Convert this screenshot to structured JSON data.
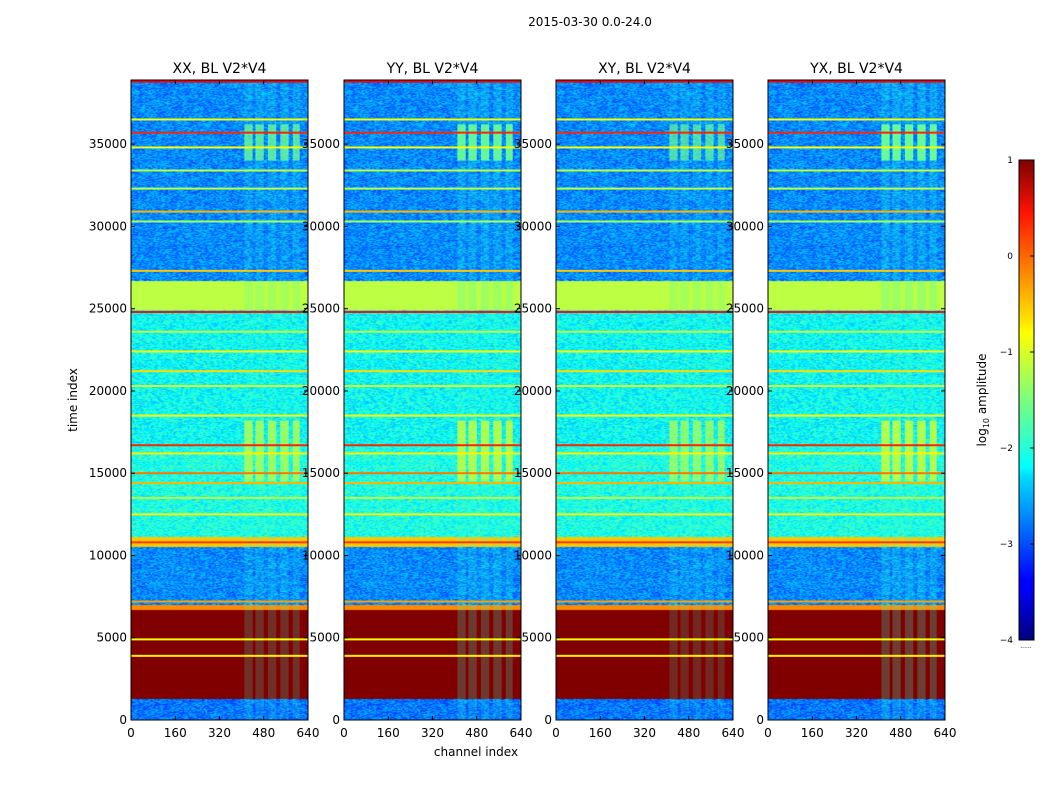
{
  "figure": {
    "suptitle": "2015-03-30 0.0-24.0",
    "xlabel": "channel index",
    "ylabel": "time index"
  },
  "colorbar": {
    "label_prefix": "log",
    "label_sub": "10",
    "label_suffix": " amplitude",
    "ticks": [
      1,
      0,
      -1,
      -2,
      -3,
      -4
    ],
    "tick_labels": [
      "1",
      "0",
      "−1",
      "−2",
      "−3",
      "−4"
    ],
    "range": [
      -4,
      1
    ],
    "colormap": "jet",
    "extra_text": "......"
  },
  "chart_data": {
    "type": "heatmap",
    "title": "2015-03-30 0.0-24.0",
    "xlabel": "channel index",
    "ylabel": "time index",
    "xlim": [
      0,
      640
    ],
    "ylim": [
      0,
      38900
    ],
    "xticks": [
      0,
      160,
      320,
      480,
      640
    ],
    "xtick_labels": [
      "0",
      "160",
      "320",
      "480",
      "640"
    ],
    "yticks": [
      0,
      5000,
      10000,
      15000,
      20000,
      25000,
      30000,
      35000
    ],
    "ytick_labels": [
      "0",
      "5000",
      "10000",
      "15000",
      "20000",
      "25000",
      "30000",
      "35000"
    ],
    "value_label": "log10 amplitude",
    "value_range": [
      -4,
      1
    ],
    "panels": [
      {
        "title": "XX, BL V2*V4",
        "ytick_labels": [
          "0",
          "5000",
          "10000",
          "15000",
          "20000",
          "25000",
          "30000",
          "35000"
        ],
        "rfi_strength": 0.75
      },
      {
        "title": "YY, BL V2*V4",
        "ytick_labels": [
          "0",
          "5000",
          "10000",
          "15000",
          "20000",
          "25000",
          "30000",
          "35000"
        ],
        "rfi_strength": 0.9
      },
      {
        "title": "XY, BL V2*V4",
        "ytick_labels": [
          "0",
          "5000",
          "10000",
          "15000",
          "20000",
          "25000",
          "30000",
          "35000"
        ],
        "rfi_strength": 0.65
      },
      {
        "title": "YX, BL V2*V4",
        "ytick_labels": [
          "0",
          "5000",
          "10000",
          "15000",
          "20000",
          "25000",
          "30000",
          "35000"
        ],
        "rfi_strength": 0.95
      }
    ],
    "time_bands": [
      {
        "t0": 0,
        "t1": 1300,
        "level": -2.8
      },
      {
        "t0": 1300,
        "t1": 6700,
        "level": 1.0
      },
      {
        "t0": 6700,
        "t1": 7000,
        "level": -0.3
      },
      {
        "t0": 7000,
        "t1": 10500,
        "level": -2.7
      },
      {
        "t0": 10500,
        "t1": 11100,
        "level": -0.6
      },
      {
        "t0": 11100,
        "t1": 16800,
        "level": -2.0
      },
      {
        "t0": 16800,
        "t1": 24900,
        "level": -2.1
      },
      {
        "t0": 24900,
        "t1": 26700,
        "level": -1.2
      },
      {
        "t0": 26700,
        "t1": 38900,
        "level": -2.7
      }
    ],
    "horizontal_lines": [
      {
        "t": 3900,
        "level": -0.8
      },
      {
        "t": 4900,
        "level": -0.9
      },
      {
        "t": 7200,
        "level": -0.4
      },
      {
        "t": 10800,
        "level": 0.1
      },
      {
        "t": 12500,
        "level": -0.9
      },
      {
        "t": 13500,
        "level": -1.2
      },
      {
        "t": 14400,
        "level": -0.5
      },
      {
        "t": 15000,
        "level": -0.2
      },
      {
        "t": 16200,
        "level": -0.8
      },
      {
        "t": 16700,
        "level": 0.2
      },
      {
        "t": 18500,
        "level": -0.9
      },
      {
        "t": 20300,
        "level": -1.1
      },
      {
        "t": 21200,
        "level": -0.7
      },
      {
        "t": 22400,
        "level": -0.9
      },
      {
        "t": 23600,
        "level": -1.2
      },
      {
        "t": 24800,
        "level": 0.3
      },
      {
        "t": 27300,
        "level": -0.6
      },
      {
        "t": 30300,
        "level": -1.3
      },
      {
        "t": 30900,
        "level": -0.5
      },
      {
        "t": 32300,
        "level": -1.2
      },
      {
        "t": 33400,
        "level": -1.2
      },
      {
        "t": 34800,
        "level": -0.9
      },
      {
        "t": 35700,
        "level": 0.2
      },
      {
        "t": 36500,
        "level": -0.9
      },
      {
        "t": 38800,
        "level": 0.4
      }
    ],
    "rfi_channel_blocks": [
      {
        "c0": 410,
        "c1": 440
      },
      {
        "c0": 450,
        "c1": 480
      },
      {
        "c0": 495,
        "c1": 525
      },
      {
        "c0": 540,
        "c1": 570
      },
      {
        "c0": 585,
        "c1": 610
      }
    ],
    "rfi_time_ranges": [
      {
        "t0": 14500,
        "t1": 18200,
        "level": -1.0
      },
      {
        "t0": 34000,
        "t1": 36200,
        "level": -1.5
      }
    ]
  }
}
